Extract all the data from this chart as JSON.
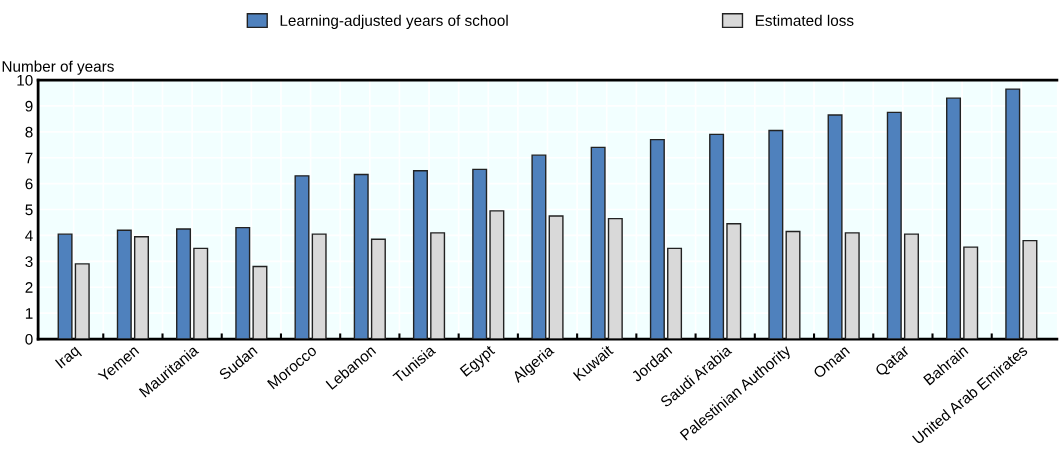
{
  "chart_data": {
    "type": "bar",
    "ylabel": "Number of years",
    "categories": [
      "Iraq",
      "Yemen",
      "Mauritania",
      "Sudan",
      "Morocco",
      "Lebanon",
      "Tunisia",
      "Egypt",
      "Algeria",
      "Kuwait",
      "Jordan",
      "Saudi Arabia",
      "Palestinian Authority",
      "Oman",
      "Qatar",
      "Bahrain",
      "United Arab Emirates"
    ],
    "series": [
      {
        "name": "Learning-adjusted years of school",
        "color": "#4f81bd",
        "values": [
          4.05,
          4.2,
          4.25,
          4.3,
          6.3,
          6.35,
          6.5,
          6.55,
          7.1,
          7.4,
          7.7,
          7.9,
          8.05,
          8.65,
          8.75,
          9.3,
          9.65
        ]
      },
      {
        "name": "Estimated loss",
        "color": "#d9d9d9",
        "values": [
          2.9,
          3.95,
          3.5,
          2.8,
          4.05,
          3.85,
          4.1,
          4.95,
          4.75,
          4.65,
          3.5,
          4.45,
          4.15,
          4.1,
          4.05,
          3.55,
          3.8
        ]
      }
    ],
    "ylim": [
      0,
      10
    ],
    "yticks": [
      0,
      1,
      2,
      3,
      4,
      5,
      6,
      7,
      8,
      9,
      10
    ],
    "grid": true,
    "legend": "top"
  }
}
